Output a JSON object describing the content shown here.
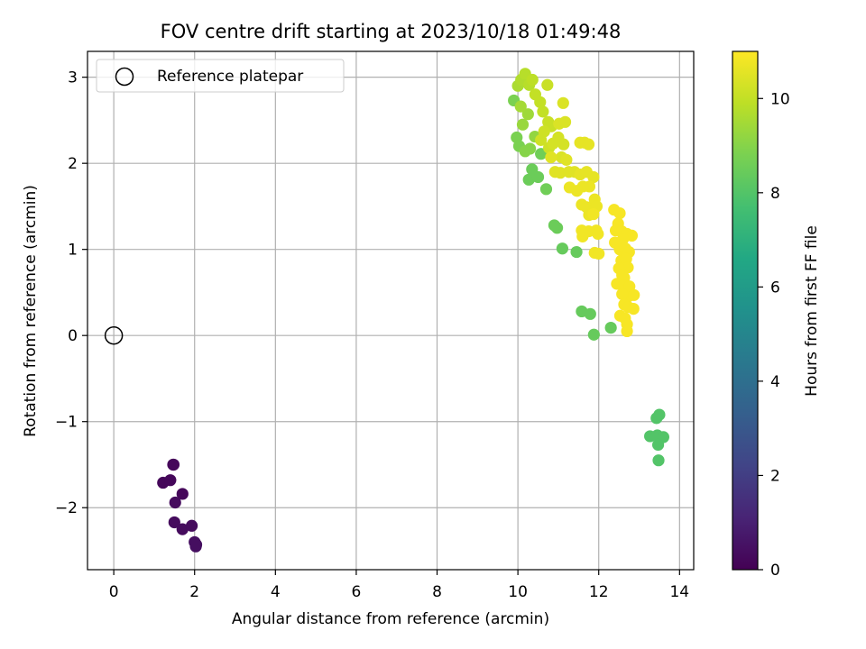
{
  "chart_data": {
    "type": "scatter",
    "title": "FOV centre drift starting at 2023/10/18 01:49:48",
    "xlabel": "Angular distance from reference (arcmin)",
    "ylabel": "Rotation from reference (arcmin)",
    "xlim": [
      -0.65,
      14.35
    ],
    "ylim": [
      -2.72,
      3.3
    ],
    "xticks": [
      0,
      2,
      4,
      6,
      8,
      10,
      12,
      14
    ],
    "yticks": [
      -2,
      -1,
      0,
      1,
      2,
      3
    ],
    "xtick_labels": [
      "0",
      "2",
      "4",
      "6",
      "8",
      "10",
      "12",
      "14"
    ],
    "ytick_labels": [
      "−2",
      "−1",
      "0",
      "1",
      "2",
      "3"
    ],
    "grid": true,
    "legend": {
      "placement": "top-left",
      "entries": [
        "Reference platepar"
      ]
    },
    "reference_point": {
      "label": "Reference platepar",
      "x": 0,
      "y": 0,
      "marker": "open-circle"
    },
    "colorbar": {
      "label": "Hours from first FF file",
      "range": [
        0,
        11
      ],
      "ticks": [
        0,
        2,
        4,
        6,
        8,
        10
      ],
      "tick_labels": [
        "0",
        "2",
        "4",
        "6",
        "8",
        "10"
      ],
      "colormap": "viridis",
      "colormap_stops": [
        "#440154",
        "#482475",
        "#414487",
        "#355f8d",
        "#2a788e",
        "#21918c",
        "#22a884",
        "#44bf70",
        "#7ad151",
        "#bddf26",
        "#fde725"
      ]
    },
    "series": [
      {
        "points": [
          [
            1.47,
            -1.5,
            0.2
          ],
          [
            1.48,
            -1.5,
            0.2
          ],
          [
            1.22,
            -1.71,
            0.2
          ],
          [
            1.4,
            -1.68,
            0.2
          ],
          [
            1.7,
            -1.84,
            0.2
          ],
          [
            1.52,
            -1.94,
            0.3
          ],
          [
            1.5,
            -2.17,
            0.3
          ],
          [
            1.7,
            -2.25,
            0.3
          ],
          [
            1.93,
            -2.21,
            0.3
          ],
          [
            2.0,
            -2.4,
            0.4
          ],
          [
            2.03,
            -2.45,
            0.4
          ],
          [
            2.04,
            -2.43,
            0.4
          ],
          [
            13.43,
            -0.96,
            8.0
          ],
          [
            13.5,
            -0.92,
            8.0
          ],
          [
            13.27,
            -1.17,
            8.0
          ],
          [
            13.45,
            -1.16,
            8.0
          ],
          [
            13.6,
            -1.18,
            8.0
          ],
          [
            13.47,
            -1.27,
            8.0
          ],
          [
            13.48,
            -1.45,
            8.0
          ],
          [
            11.88,
            0.01,
            8.4
          ],
          [
            11.58,
            0.28,
            8.4
          ],
          [
            11.79,
            0.25,
            8.4
          ],
          [
            12.3,
            0.09,
            8.4
          ],
          [
            11.45,
            0.97,
            8.4
          ],
          [
            11.1,
            1.01,
            8.4
          ],
          [
            10.97,
            1.25,
            8.5
          ],
          [
            10.9,
            1.28,
            8.5
          ],
          [
            10.27,
            1.81,
            8.5
          ],
          [
            10.5,
            1.84,
            8.5
          ],
          [
            10.35,
            1.93,
            8.5
          ],
          [
            10.57,
            2.11,
            8.6
          ],
          [
            10.7,
            1.7,
            8.6
          ],
          [
            9.9,
            2.73,
            8.8
          ],
          [
            9.97,
            2.3,
            8.8
          ],
          [
            10.03,
            2.2,
            8.8
          ],
          [
            10.18,
            2.14,
            9.0
          ],
          [
            10.3,
            2.17,
            9.0
          ],
          [
            10.42,
            2.31,
            9.2
          ],
          [
            10.12,
            2.45,
            9.3
          ],
          [
            10.25,
            2.57,
            9.4
          ],
          [
            10.07,
            2.66,
            9.5
          ],
          [
            10.0,
            2.9,
            9.6
          ],
          [
            10.08,
            2.97,
            9.7
          ],
          [
            10.18,
            3.04,
            9.8
          ],
          [
            10.28,
            2.91,
            9.8
          ],
          [
            10.36,
            2.97,
            9.9
          ],
          [
            10.43,
            2.8,
            10.0
          ],
          [
            10.55,
            2.71,
            10.0
          ],
          [
            10.62,
            2.6,
            10.0
          ],
          [
            10.75,
            2.48,
            10.1
          ],
          [
            10.83,
            2.43,
            10.1
          ],
          [
            10.73,
            2.91,
            10.1
          ],
          [
            10.65,
            2.37,
            10.2
          ],
          [
            10.57,
            2.27,
            10.2
          ],
          [
            10.77,
            2.18,
            10.2
          ],
          [
            10.87,
            2.23,
            10.3
          ],
          [
            11.0,
            2.3,
            10.3
          ],
          [
            11.13,
            2.22,
            10.3
          ],
          [
            11.02,
            2.46,
            10.4
          ],
          [
            11.17,
            2.48,
            10.4
          ],
          [
            11.12,
            2.7,
            10.4
          ],
          [
            11.08,
            2.07,
            10.4
          ],
          [
            11.2,
            2.04,
            10.5
          ],
          [
            10.82,
            2.07,
            10.5
          ],
          [
            10.92,
            1.9,
            10.5
          ],
          [
            11.05,
            1.89,
            10.5
          ],
          [
            11.26,
            1.9,
            10.5
          ],
          [
            11.4,
            1.9,
            10.5
          ],
          [
            11.54,
            1.87,
            10.6
          ],
          [
            11.7,
            1.9,
            10.6
          ],
          [
            11.54,
            2.24,
            10.6
          ],
          [
            11.65,
            2.24,
            10.6
          ],
          [
            11.75,
            2.22,
            10.6
          ],
          [
            11.87,
            1.84,
            10.6
          ],
          [
            11.77,
            1.73,
            10.7
          ],
          [
            11.61,
            1.73,
            10.7
          ],
          [
            11.46,
            1.68,
            10.7
          ],
          [
            11.28,
            1.72,
            10.7
          ],
          [
            11.58,
            1.52,
            10.7
          ],
          [
            11.7,
            1.49,
            10.7
          ],
          [
            11.76,
            1.4,
            10.7
          ],
          [
            11.9,
            1.58,
            10.7
          ],
          [
            11.95,
            1.5,
            10.7
          ],
          [
            11.87,
            1.41,
            10.8
          ],
          [
            11.94,
            1.22,
            10.8
          ],
          [
            11.75,
            1.21,
            10.8
          ],
          [
            11.6,
            1.15,
            10.8
          ],
          [
            11.58,
            1.22,
            10.8
          ],
          [
            11.98,
            1.18,
            10.8
          ],
          [
            11.9,
            0.96,
            10.8
          ],
          [
            12.0,
            0.95,
            10.8
          ],
          [
            12.38,
            1.46,
            10.9
          ],
          [
            12.52,
            1.42,
            10.9
          ],
          [
            12.48,
            1.3,
            10.9
          ],
          [
            12.42,
            1.22,
            10.9
          ],
          [
            12.57,
            1.21,
            10.9
          ],
          [
            12.7,
            1.18,
            10.9
          ],
          [
            12.82,
            1.16,
            10.9
          ],
          [
            12.6,
            1.12,
            10.9
          ],
          [
            12.4,
            1.08,
            10.9
          ],
          [
            12.52,
            1.0,
            10.9
          ],
          [
            12.66,
            1.01,
            10.9
          ],
          [
            12.75,
            0.97,
            10.9
          ],
          [
            12.56,
            0.87,
            10.9
          ],
          [
            12.68,
            0.89,
            10.9
          ],
          [
            12.72,
            0.79,
            10.9
          ],
          [
            12.5,
            0.78,
            10.9
          ],
          [
            12.58,
            0.7,
            10.9
          ],
          [
            12.63,
            0.67,
            10.9
          ],
          [
            12.45,
            0.6,
            10.9
          ],
          [
            12.62,
            0.58,
            10.9
          ],
          [
            12.76,
            0.57,
            10.9
          ],
          [
            12.72,
            0.45,
            10.9
          ],
          [
            12.87,
            0.47,
            10.9
          ],
          [
            12.58,
            0.48,
            10.9
          ],
          [
            12.63,
            0.36,
            10.9
          ],
          [
            12.73,
            0.33,
            10.9
          ],
          [
            12.86,
            0.31,
            10.9
          ],
          [
            12.53,
            0.23,
            10.9
          ],
          [
            12.65,
            0.2,
            10.9
          ],
          [
            12.7,
            0.13,
            10.9
          ],
          [
            12.7,
            0.05,
            10.9
          ]
        ]
      }
    ]
  }
}
